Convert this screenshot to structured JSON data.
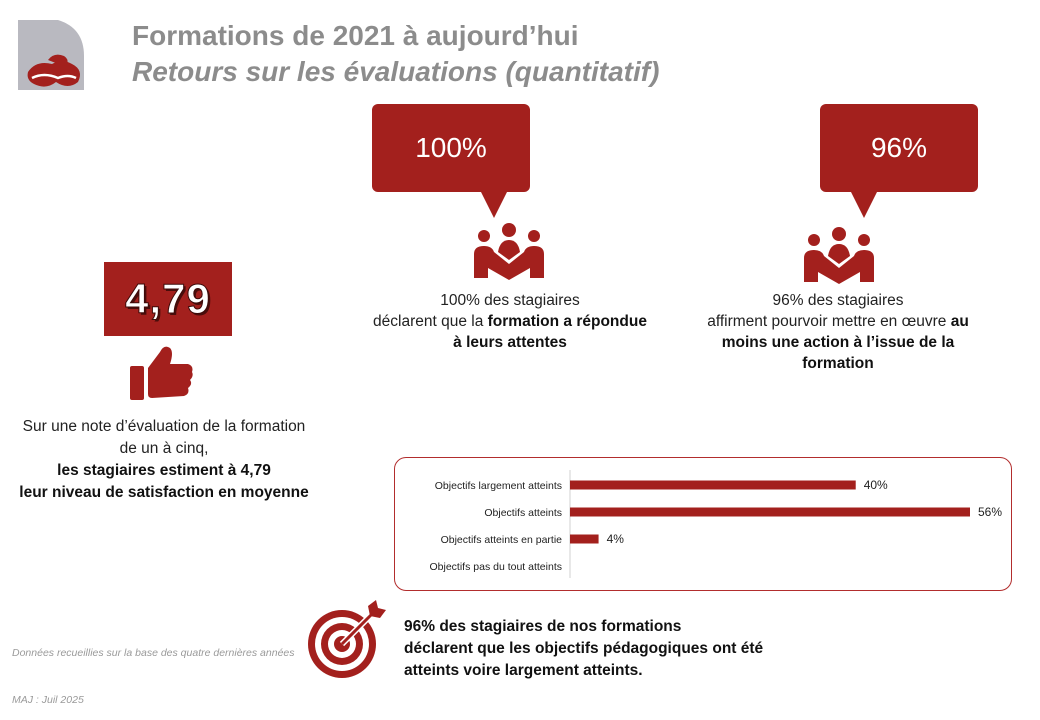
{
  "header": {
    "title": "Formations de 2021 à aujourd’hui",
    "subtitle": "Retours sur les évaluations (quantitatif)"
  },
  "colors": {
    "accent": "#a3201d",
    "title_gray": "#8c8c8c",
    "logo_gray": "#b9b9c0"
  },
  "score": {
    "value": "4,79",
    "icon": "thumbs-up-icon",
    "line1": "Sur une note d’évaluation de la formation",
    "line2": "de un à cinq,",
    "bold1": "les stagiaires estiment à 4,79",
    "bold2": "leur niveau de satisfaction en moyenne"
  },
  "stat1": {
    "bubble": "100%",
    "icon": "group-people-icon",
    "line1": "100% des stagiaires",
    "line2_plain": "déclarent que la ",
    "line2_bold": "formation a répondue",
    "line3_bold": "à leurs attentes"
  },
  "stat2": {
    "bubble": "96%",
    "icon": "group-people-icon",
    "line1": "96% des stagiaires",
    "line2_plain": "affirment pourvoir mettre en œuvre ",
    "line2_bold": "au",
    "line3_bold": "moins une action à l’issue de la",
    "line4_bold": "formation"
  },
  "chart_data": {
    "type": "bar",
    "orientation": "horizontal",
    "categories": [
      "Objectifs largement atteints",
      "Objectifs atteints",
      "Objectifs atteints en partie",
      "Objectifs pas du tout atteints"
    ],
    "values": [
      40,
      56,
      4,
      0
    ],
    "labels": [
      "40%",
      "56%",
      "4%",
      ""
    ],
    "xlim": [
      0,
      56
    ],
    "grid": false
  },
  "target": {
    "icon": "target-arrow-icon",
    "line1": "96% des stagiaires de nos formations",
    "line2": "déclarent que les objectifs pédagogiques ont été",
    "line3": "atteints voire largement atteints."
  },
  "footer": {
    "note": "Données recueillies sur la base des quatre dernières années",
    "maj": "MAJ : Juil 2025"
  }
}
